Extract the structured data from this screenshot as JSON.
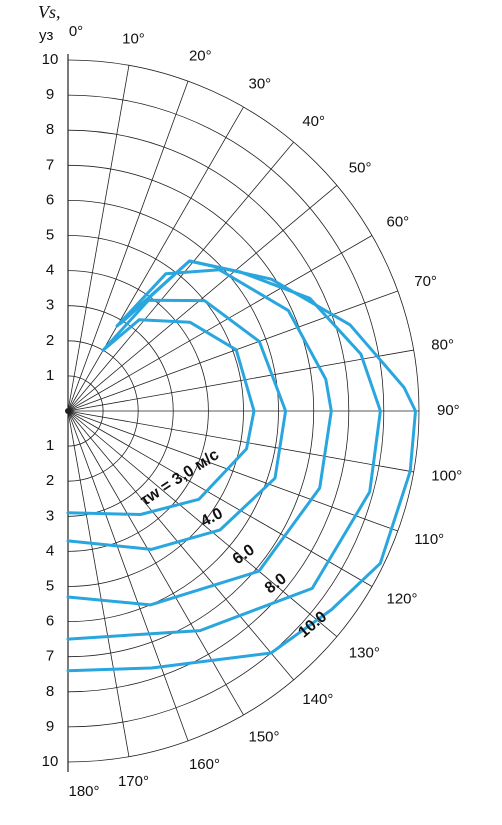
{
  "chart_data": {
    "type": "polar",
    "y_label": "Vs,",
    "y_unit": "уз",
    "rlim": [
      0,
      10
    ],
    "rticks": [
      1,
      2,
      3,
      4,
      5,
      6,
      7,
      8,
      9,
      10
    ],
    "theta_ticks": [
      {
        "value": 0,
        "label": "0°"
      },
      {
        "value": 10,
        "label": "10°"
      },
      {
        "value": 20,
        "label": "20°"
      },
      {
        "value": 30,
        "label": "30°"
      },
      {
        "value": 40,
        "label": "40°"
      },
      {
        "value": 50,
        "label": "50°"
      },
      {
        "value": 60,
        "label": "60°"
      },
      {
        "value": 70,
        "label": "70°"
      },
      {
        "value": 80,
        "label": "80°"
      },
      {
        "value": 90,
        "label": "90°"
      },
      {
        "value": 100,
        "label": "100°"
      },
      {
        "value": 110,
        "label": "110°"
      },
      {
        "value": 120,
        "label": "120°"
      },
      {
        "value": 130,
        "label": "130°"
      },
      {
        "value": 140,
        "label": "140°"
      },
      {
        "value": 150,
        "label": "150°"
      },
      {
        "value": 160,
        "label": "160°"
      },
      {
        "value": 170,
        "label": "170°"
      },
      {
        "value": 180,
        "label": "180°"
      }
    ],
    "grid": true,
    "series": [
      {
        "name": "τw = 3,0 м/с",
        "color": "#2aa6df",
        "theta": [
          30,
          38,
          54,
          70,
          90,
          102,
          124,
          145,
          180
        ],
        "r": [
          2.0,
          3.3,
          4.3,
          5.1,
          5.3,
          5.2,
          4.5,
          3.6,
          2.9
        ]
      },
      {
        "name": "4.0",
        "color": "#2aa6df",
        "theta": [
          30,
          36,
          51,
          70,
          90,
          108,
          128,
          149,
          180
        ],
        "r": [
          2.0,
          3.9,
          5.0,
          5.8,
          6.2,
          6.2,
          5.5,
          4.6,
          3.7
        ]
      },
      {
        "name": "6.0",
        "color": "#2aa6df",
        "theta": [
          30,
          35.5,
          47,
          65.5,
          83,
          90,
          107,
          130,
          157,
          180
        ],
        "r": [
          2.8,
          4.8,
          5.9,
          6.9,
          7.4,
          7.5,
          7.5,
          7.1,
          6.0,
          5.3
        ]
      },
      {
        "name": "8.0",
        "color": "#2aa6df",
        "theta": [
          30,
          39,
          51,
          65,
          79,
          90,
          105,
          126,
          149,
          180
        ],
        "r": [
          2.8,
          5.5,
          6.3,
          7.6,
          8.5,
          8.9,
          8.9,
          8.6,
          7.3,
          6.5
        ]
      },
      {
        "name": "10.0",
        "color": "#2aa6df",
        "theta": [
          31,
          39,
          57,
          73,
          86,
          90,
          100,
          116,
          127,
          140,
          162,
          180
        ],
        "r": [
          2.9,
          5.5,
          6.9,
          8.4,
          9.6,
          9.9,
          9.9,
          9.9,
          9.4,
          9.0,
          7.7,
          7.4
        ]
      }
    ]
  }
}
